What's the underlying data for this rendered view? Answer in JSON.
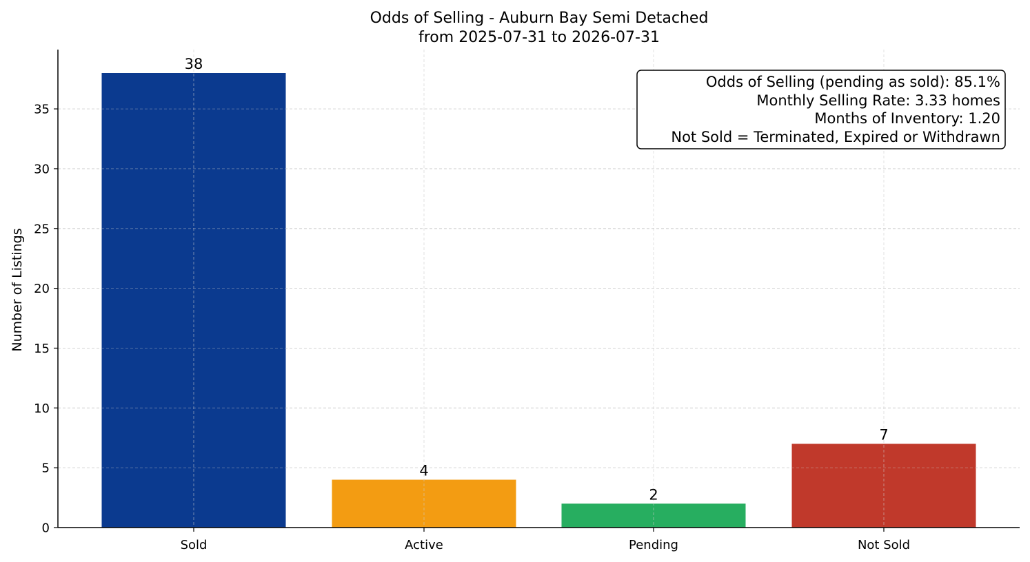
{
  "chart_data": {
    "type": "bar",
    "title": "Odds of Selling - Auburn Bay Semi Detached",
    "subtitle": "from 2025-07-31 to 2026-07-31",
    "xlabel": "",
    "ylabel": "Number of Listings",
    "categories": [
      "Sold",
      "Active",
      "Pending",
      "Not Sold"
    ],
    "values": [
      38,
      4,
      2,
      7
    ],
    "colors": [
      "#0b3a8f",
      "#f39c12",
      "#27ae60",
      "#c0392b"
    ],
    "ylim": [
      0,
      40
    ],
    "yticks": [
      0,
      5,
      10,
      15,
      20,
      25,
      30,
      35
    ],
    "grid": true,
    "info_box": {
      "position": "top-right",
      "lines": [
        "Odds of Selling (pending as sold): 85.1%",
        "Monthly Selling Rate: 3.33 homes",
        "Months of Inventory: 1.20",
        "Not Sold = Terminated, Expired or Withdrawn"
      ]
    }
  }
}
